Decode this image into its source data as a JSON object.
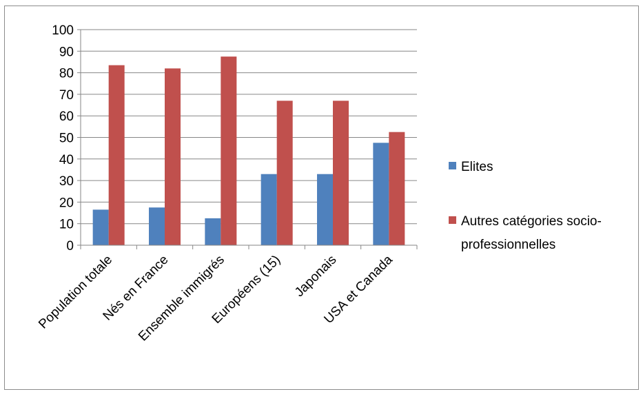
{
  "chart_data": {
    "type": "bar",
    "title": "",
    "xlabel": "",
    "ylabel": "",
    "ylim": [
      0,
      100
    ],
    "yticks": [
      0,
      10,
      20,
      30,
      40,
      50,
      60,
      70,
      80,
      90,
      100
    ],
    "grid": true,
    "legend_position": "right",
    "categories": [
      "Population totale",
      "Nés en France",
      "Ensemble immigrés",
      "Européens (15)",
      "Japonais",
      "USA et Canada"
    ],
    "series": [
      {
        "name": "Elites",
        "color": "#4f81bd",
        "values": [
          16.5,
          17.5,
          12.5,
          33,
          33,
          47.5
        ]
      },
      {
        "name": "Autres catégories socio-professionnelles",
        "color": "#c0504d",
        "values": [
          83.5,
          82,
          87.5,
          67,
          67,
          52.5
        ]
      }
    ],
    "legend_labels": [
      [
        "Elites"
      ],
      [
        "Autres catégories socio-",
        "professionnelles"
      ]
    ]
  }
}
